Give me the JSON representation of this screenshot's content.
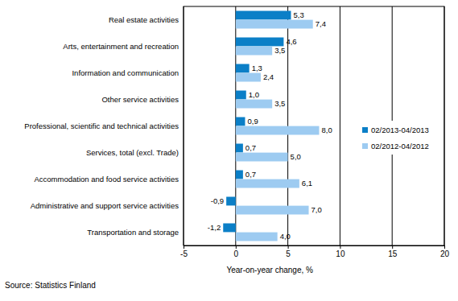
{
  "chart_data": {
    "type": "bar",
    "orientation": "horizontal",
    "categories": [
      "Real estate activities",
      "Arts, entertainment and recreation",
      "Information and communication",
      "Other service activities",
      "Professional, scientific and technical activities",
      "Services, total (excl. Trade)",
      "Accommodation and food service activities",
      "Administrative and support service activities",
      "Transportation and storage"
    ],
    "series": [
      {
        "name": "02/2013-04/2013",
        "color": "#0b7fc7",
        "values": [
          5.3,
          4.6,
          1.3,
          1.0,
          0.9,
          0.7,
          0.7,
          -0.9,
          -1.2
        ],
        "value_labels": [
          "5,3",
          "4,6",
          "1,3",
          "1,0",
          "0,9",
          "0,7",
          "0,7",
          "-0,9",
          "-1,2"
        ]
      },
      {
        "name": "02/2012-04/2012",
        "color": "#9dcbf1",
        "values": [
          7.4,
          3.5,
          2.4,
          3.5,
          8.0,
          5.0,
          6.1,
          7.0,
          4.0
        ],
        "value_labels": [
          "7,4",
          "3,5",
          "2,4",
          "3,5",
          "8,0",
          "5,0",
          "6,1",
          "7,0",
          "4,0"
        ]
      }
    ],
    "x_label": "Year-on-year change, %",
    "xlim": [
      -5,
      20
    ],
    "xticks": [
      -5,
      0,
      5,
      10,
      15,
      20
    ],
    "grid": true,
    "legend": "right",
    "data_labels": true,
    "annotations": [
      "Source: Statistics Finland"
    ]
  }
}
